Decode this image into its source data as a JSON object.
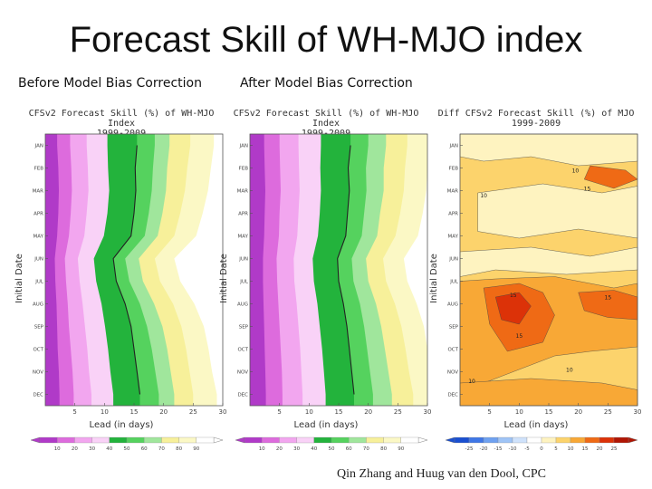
{
  "slide": {
    "title": "Forecast Skill of WH-MJO index",
    "subtitle_left": "Before Model Bias Correction",
    "subtitle_middle": "After Model Bias Correction",
    "credit": "Qin Zhang and Huug van den Dool, CPC"
  },
  "chart_data": [
    {
      "type": "heatmap",
      "title": "CFSv2 Forecast Skill (%) of WH-MJO Index",
      "subtitle": "1999-2009",
      "xlabel": "Lead (in days)",
      "ylabel": "Initial Date",
      "x_ticks": [
        5,
        10,
        15,
        20,
        25,
        30
      ],
      "xlim": [
        0,
        30
      ],
      "y_ticks": [
        "JAN",
        "FEB",
        "MAR",
        "APR",
        "MAY",
        "JUN",
        "JUL",
        "AUG",
        "SEP",
        "OCT",
        "NOV",
        "DEC"
      ],
      "colorbar_levels": [
        10,
        20,
        30,
        40,
        50,
        60,
        70,
        80,
        90
      ],
      "colors": [
        "#b03ac8",
        "#dd6bdd",
        "#f2a6ef",
        "#f9d2f7",
        "#23b33c",
        "#55d25e",
        "#a0e69c",
        "#f7f09a",
        "#fbf8c5",
        "#ffffff"
      ],
      "level_labels": [
        ">90",
        "80-90",
        "70-80",
        "60-70",
        "50-60",
        "40-50",
        "30-40",
        "20-30",
        "10-20",
        "<10"
      ],
      "contour_value": 50,
      "contour_lead_by_month": [
        15.5,
        15.2,
        15.3,
        15.0,
        14.5,
        11.5,
        12.0,
        13.5,
        14.5,
        15.0,
        15.5,
        16.0
      ],
      "level_lead_by_month": [
        [
          2.0,
          2.2,
          2.3,
          2.2,
          2.0,
          1.6,
          1.7,
          1.9,
          2.0,
          2.1,
          2.3,
          2.4
        ],
        [
          4.2,
          4.4,
          4.5,
          4.3,
          4.0,
          3.3,
          3.5,
          3.8,
          4.0,
          4.3,
          4.6,
          4.8
        ],
        [
          7.0,
          7.2,
          7.3,
          7.0,
          6.6,
          5.5,
          5.8,
          6.3,
          6.7,
          7.1,
          7.4,
          7.8
        ],
        [
          10.5,
          10.6,
          10.8,
          10.5,
          9.9,
          8.2,
          8.6,
          9.5,
          10.1,
          10.6,
          11.0,
          11.5
        ],
        [
          15.5,
          15.2,
          15.3,
          15.0,
          14.5,
          11.5,
          12.0,
          13.5,
          14.5,
          15.0,
          15.5,
          16.0
        ],
        [
          18.5,
          18.2,
          18.0,
          17.5,
          16.8,
          13.5,
          14.2,
          16.0,
          17.2,
          18.0,
          18.6,
          19.2
        ],
        [
          21.0,
          20.6,
          20.4,
          19.8,
          19.0,
          15.8,
          16.5,
          18.4,
          19.8,
          20.6,
          21.2,
          21.8
        ],
        [
          24.5,
          24.0,
          23.6,
          22.8,
          21.8,
          18.5,
          19.4,
          21.6,
          23.0,
          23.8,
          24.4,
          25.0
        ],
        [
          28.5,
          28.0,
          27.5,
          26.6,
          25.5,
          21.8,
          22.8,
          25.2,
          26.8,
          27.6,
          28.2,
          29.0
        ]
      ]
    },
    {
      "type": "heatmap",
      "title": "CFSv2 Forecast Skill (%) of WH-MJO Index",
      "subtitle": "1999-2009",
      "xlabel": "Lead (in days)",
      "ylabel": "Initial Date",
      "x_ticks": [
        5,
        10,
        15,
        20,
        25,
        30
      ],
      "xlim": [
        0,
        30
      ],
      "y_ticks": [
        "JAN",
        "FEB",
        "MAR",
        "APR",
        "MAY",
        "JUN",
        "JUL",
        "AUG",
        "SEP",
        "OCT",
        "NOV",
        "DEC"
      ],
      "colorbar_levels": [
        10,
        20,
        30,
        40,
        50,
        60,
        70,
        80,
        90
      ],
      "colors": [
        "#b03ac8",
        "#dd6bdd",
        "#f2a6ef",
        "#f9d2f7",
        "#23b33c",
        "#55d25e",
        "#a0e69c",
        "#f7f09a",
        "#fbf8c5",
        "#ffffff"
      ],
      "level_labels": [
        ">90",
        "80-90",
        "70-80",
        "60-70",
        "50-60",
        "40-50",
        "30-40",
        "20-30",
        "10-20",
        "<10"
      ],
      "contour_value": 50,
      "contour_lead_by_month": [
        17.0,
        16.6,
        16.8,
        16.5,
        16.2,
        14.8,
        15.0,
        15.8,
        16.4,
        16.8,
        17.2,
        17.6
      ],
      "level_lead_by_month": [
        [
          2.4,
          2.5,
          2.6,
          2.5,
          2.4,
          2.2,
          2.2,
          2.3,
          2.4,
          2.5,
          2.6,
          2.7
        ],
        [
          5.0,
          5.1,
          5.2,
          5.0,
          4.9,
          4.5,
          4.6,
          4.8,
          5.0,
          5.2,
          5.4,
          5.5
        ],
        [
          8.2,
          8.3,
          8.4,
          8.2,
          8.0,
          7.4,
          7.5,
          7.9,
          8.2,
          8.5,
          8.7,
          8.9
        ],
        [
          12.0,
          11.9,
          12.0,
          11.8,
          11.5,
          10.6,
          10.8,
          11.4,
          11.8,
          12.2,
          12.5,
          12.8
        ],
        [
          17.0,
          16.6,
          16.8,
          16.5,
          16.2,
          14.8,
          15.0,
          15.8,
          16.4,
          16.8,
          17.2,
          17.6
        ],
        [
          20.0,
          19.6,
          19.7,
          19.3,
          18.9,
          17.2,
          17.5,
          18.6,
          19.3,
          19.8,
          20.3,
          20.8
        ],
        [
          23.0,
          22.6,
          22.6,
          22.0,
          21.5,
          19.6,
          20.0,
          21.3,
          22.2,
          22.8,
          23.4,
          24.0
        ],
        [
          26.6,
          26.2,
          26.0,
          25.4,
          24.6,
          22.5,
          23.0,
          24.5,
          25.6,
          26.3,
          26.9,
          27.6
        ],
        [
          30.5,
          30.2,
          29.8,
          29.2,
          28.4,
          26.0,
          26.6,
          28.2,
          29.4,
          30.2,
          30.8,
          31.4
        ]
      ]
    },
    {
      "type": "heatmap",
      "title": "Diff CFSv2 Forecast Skill (%) of MJO",
      "subtitle": "1999-2009",
      "xlabel": "Lead (in days)",
      "ylabel": "Initial Date",
      "x_ticks": [
        5,
        10,
        15,
        20,
        25,
        30
      ],
      "xlim": [
        0,
        30
      ],
      "y_ticks": [
        "JAN",
        "FEB",
        "MAR",
        "APR",
        "MAY",
        "JUN",
        "JUL",
        "AUG",
        "SEP",
        "OCT",
        "NOV",
        "DEC"
      ],
      "colorbar_levels": [
        -25,
        -20,
        -15,
        -10,
        -5,
        0,
        5,
        10,
        15,
        20,
        25
      ],
      "colors": [
        "#1a4fd0",
        "#3f77e6",
        "#6fa1f0",
        "#9fc4f6",
        "#cfe2fb",
        "#ffffff",
        "#fef3c0",
        "#fcd36c",
        "#f8a836",
        "#ef6a15",
        "#dc3208",
        "#b01604"
      ],
      "level_labels": [
        "<-25",
        "-25 to -20",
        "-20 to -15",
        "-15 to -10",
        "-10 to -5",
        "-5 to 0",
        "0 to 5",
        "5 to 10",
        "10 to 15",
        "15 to 20",
        "20 to 25",
        ">25"
      ],
      "contour_labels": [
        {
          "text": "10",
          "lead": 19.5,
          "month": 1.7
        },
        {
          "text": "15",
          "lead": 21.5,
          "month": 2.5
        },
        {
          "text": "15",
          "lead": 9.0,
          "month": 7.2
        },
        {
          "text": "15",
          "lead": 25.0,
          "month": 7.3
        },
        {
          "text": "15",
          "lead": 10.0,
          "month": 9.0
        },
        {
          "text": "10",
          "lead": 4.0,
          "month": 2.8
        },
        {
          "text": "10",
          "lead": 18.5,
          "month": 10.5
        },
        {
          "text": "10",
          "lead": 2.0,
          "month": 11.0
        }
      ]
    }
  ]
}
